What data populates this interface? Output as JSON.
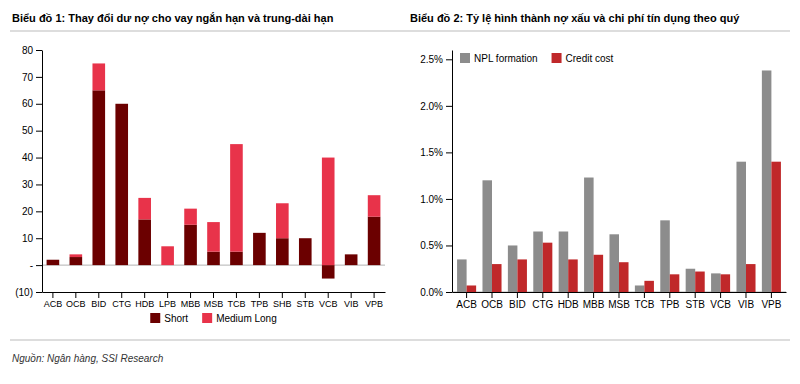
{
  "chart_data": [
    {
      "type": "bar",
      "title": "Biểu đồ 1: Thay đổi dư nợ cho vay ngắn hạn và trung-dài hạn",
      "annotations": [
        "Nguồn: Ngân hàng, SSI Research"
      ],
      "categories": [
        "ACB",
        "OCB",
        "BID",
        "CTG",
        "HDB",
        "LPB",
        "MBB",
        "MSB",
        "TCB",
        "TPB",
        "SHB",
        "STB",
        "VCB",
        "VIB",
        "VPB"
      ],
      "series": [
        {
          "name": "Short",
          "color": "#6b0000",
          "values": [
            2,
            3,
            65,
            60,
            17,
            0,
            15,
            5,
            5,
            12,
            10,
            10,
            -5,
            4,
            18
          ]
        },
        {
          "name": "Medium Long",
          "color": "#e8334a",
          "values": [
            0,
            1,
            10,
            0,
            8,
            7,
            6,
            11,
            40,
            0,
            13,
            0,
            40,
            0,
            8
          ]
        }
      ],
      "stacked": true,
      "ylim": [
        -10,
        80
      ],
      "yticks": [
        {
          "value": -10,
          "label": "(10)"
        },
        {
          "value": 0,
          "label": "-"
        },
        10,
        20,
        30,
        40,
        50,
        60,
        70,
        80
      ],
      "grid": false,
      "legend": "bottom"
    },
    {
      "type": "bar",
      "title": "Biểu đồ 2: Tỷ lệ hình thành nợ xấu và chi phí tín dụng theo quý",
      "categories": [
        "ACB",
        "OCB",
        "BID",
        "CTG",
        "HDB",
        "MBB",
        "MSB",
        "TCB",
        "TPB",
        "STB",
        "VCB",
        "VIB",
        "VPB"
      ],
      "series": [
        {
          "name": "NPL formation",
          "color": "#8c8c8c",
          "values": [
            0.0035,
            0.012,
            0.005,
            0.0065,
            0.0065,
            0.0123,
            0.0062,
            0.0007,
            0.0077,
            0.0025,
            0.002,
            0.014,
            0.0238
          ]
        },
        {
          "name": "Credit cost",
          "color": "#c0282a",
          "values": [
            0.0007,
            0.003,
            0.0035,
            0.0053,
            0.0035,
            0.004,
            0.0032,
            0.0012,
            0.0019,
            0.0022,
            0.0019,
            0.003,
            0.014
          ]
        }
      ],
      "stacked": false,
      "ylim": [
        0,
        0.026
      ],
      "yticks": [
        {
          "value": 0,
          "label": "0.0%"
        },
        {
          "value": 0.005,
          "label": "0.5%"
        },
        {
          "value": 0.01,
          "label": "1.0%"
        },
        {
          "value": 0.015,
          "label": "1.5%"
        },
        {
          "value": 0.02,
          "label": "2.0%"
        },
        {
          "value": 0.025,
          "label": "2.5%"
        }
      ],
      "grid": false,
      "legend": "upper left"
    }
  ]
}
